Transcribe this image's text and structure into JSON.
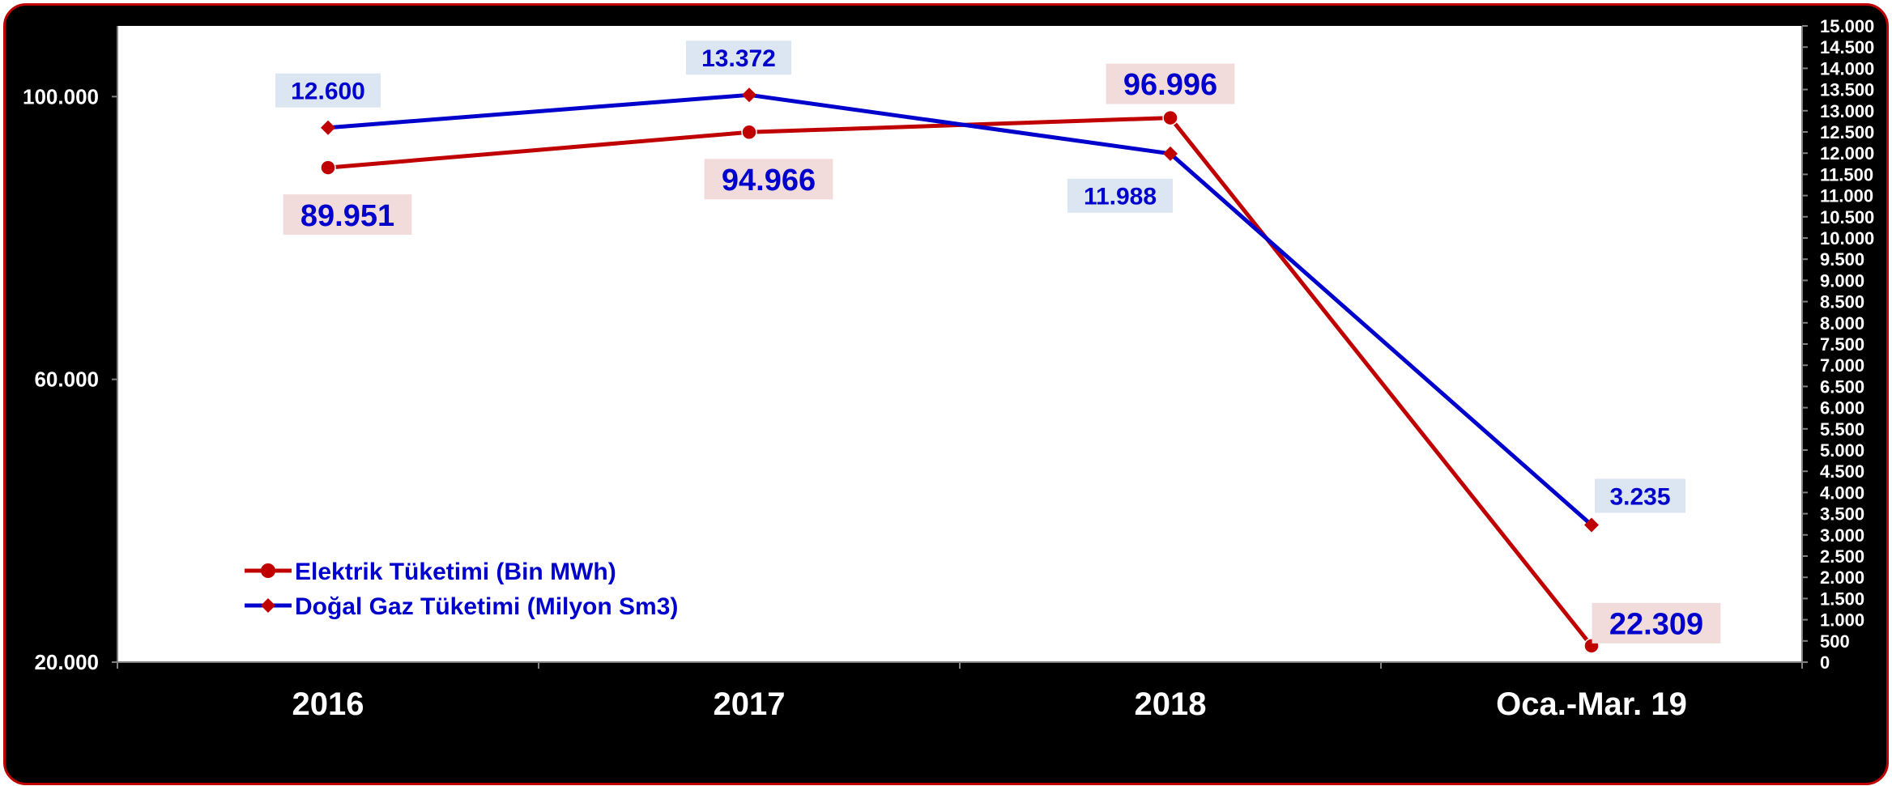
{
  "chart_data": {
    "type": "line",
    "categories": [
      "2016",
      "2017",
      "2018",
      "Oca.-Mar. 19"
    ],
    "series": [
      {
        "name": "Elektrik Tüketimi (Bin MWh)",
        "axis": "left",
        "values": [
          89951,
          94966,
          96996,
          22309
        ],
        "labels": [
          "89.951",
          "94.966",
          "96.996",
          "22.309"
        ],
        "color": "#c00000",
        "marker": "circle",
        "label_bg": "#f2dcdb",
        "label_color": "#0000cc"
      },
      {
        "name": "Doğal Gaz Tüketimi (Milyon Sm3)",
        "axis": "right",
        "values": [
          12600,
          13372,
          11988,
          3235
        ],
        "labels": [
          "12.600",
          "13.372",
          "11.988",
          "3.235"
        ],
        "color": "#0000cc",
        "marker": "diamond",
        "marker_color": "#c00000",
        "label_bg": "#dce6f2",
        "label_color": "#0000cc"
      }
    ],
    "y_left": {
      "range": [
        20000,
        110000
      ],
      "ticks": [
        20000,
        60000,
        100000
      ],
      "tick_labels": [
        "20.000",
        "60.000",
        "100.000"
      ]
    },
    "y_right": {
      "range": [
        0,
        15000
      ],
      "ticks": [
        0,
        500,
        1000,
        1500,
        2000,
        2500,
        3000,
        3500,
        4000,
        4500,
        5000,
        5500,
        6000,
        6500,
        7000,
        7500,
        8000,
        8500,
        9000,
        9500,
        10000,
        10500,
        11000,
        11500,
        12000,
        12500,
        13000,
        13500,
        14000,
        14500,
        15000
      ],
      "tick_labels": [
        "0",
        "500",
        "1.000",
        "1.500",
        "2.000",
        "2.500",
        "3.000",
        "3.500",
        "4.000",
        "4.500",
        "5.000",
        "5.500",
        "6.000",
        "6.500",
        "7.000",
        "7.500",
        "8.000",
        "8.500",
        "9.000",
        "9.500",
        "10.000",
        "10.500",
        "11.000",
        "11.500",
        "12.000",
        "12.500",
        "13.000",
        "13.500",
        "14.000",
        "14.500",
        "15.000"
      ]
    },
    "grid": false,
    "legend": "bottom-left",
    "colors": {
      "frame_background": "#000000",
      "frame_border": "#c00000",
      "plot_background": "#ffffff",
      "axis_text": "#ffffff"
    }
  }
}
